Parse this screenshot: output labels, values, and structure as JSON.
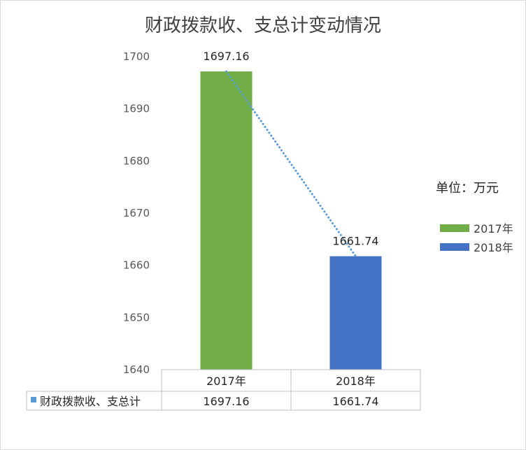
{
  "chart_data": {
    "type": "bar",
    "title": "财政拨款收、支总计变动情况",
    "categories": [
      "2017年",
      "2018年"
    ],
    "values": [
      1697.16,
      1661.74
    ],
    "value_labels": [
      "1697.16",
      "1661.74"
    ],
    "series": [
      {
        "name": "财政拨款收、支总计",
        "values": [
          1697.16,
          1661.74
        ],
        "color": "#5b9bd5"
      }
    ],
    "bar_colors": [
      "#70ad47",
      "#4472c4"
    ],
    "trendline": {
      "style": "dotted",
      "color": "#5b9bd5"
    },
    "ylim": [
      1640,
      1700
    ],
    "yticks": [
      1640,
      1650,
      1660,
      1670,
      1680,
      1690,
      1700
    ],
    "grid": false,
    "unit_note": "单位：万元",
    "legend": {
      "position": "right",
      "entries": [
        {
          "label": "2017年",
          "color": "#70ad47"
        },
        {
          "label": "2018年",
          "color": "#4472c4"
        }
      ]
    },
    "data_table": {
      "row_label": "财政拨款收、支总计",
      "row_marker_color": "#5b9bd5",
      "values": [
        "1697.16",
        "1661.74"
      ]
    }
  }
}
